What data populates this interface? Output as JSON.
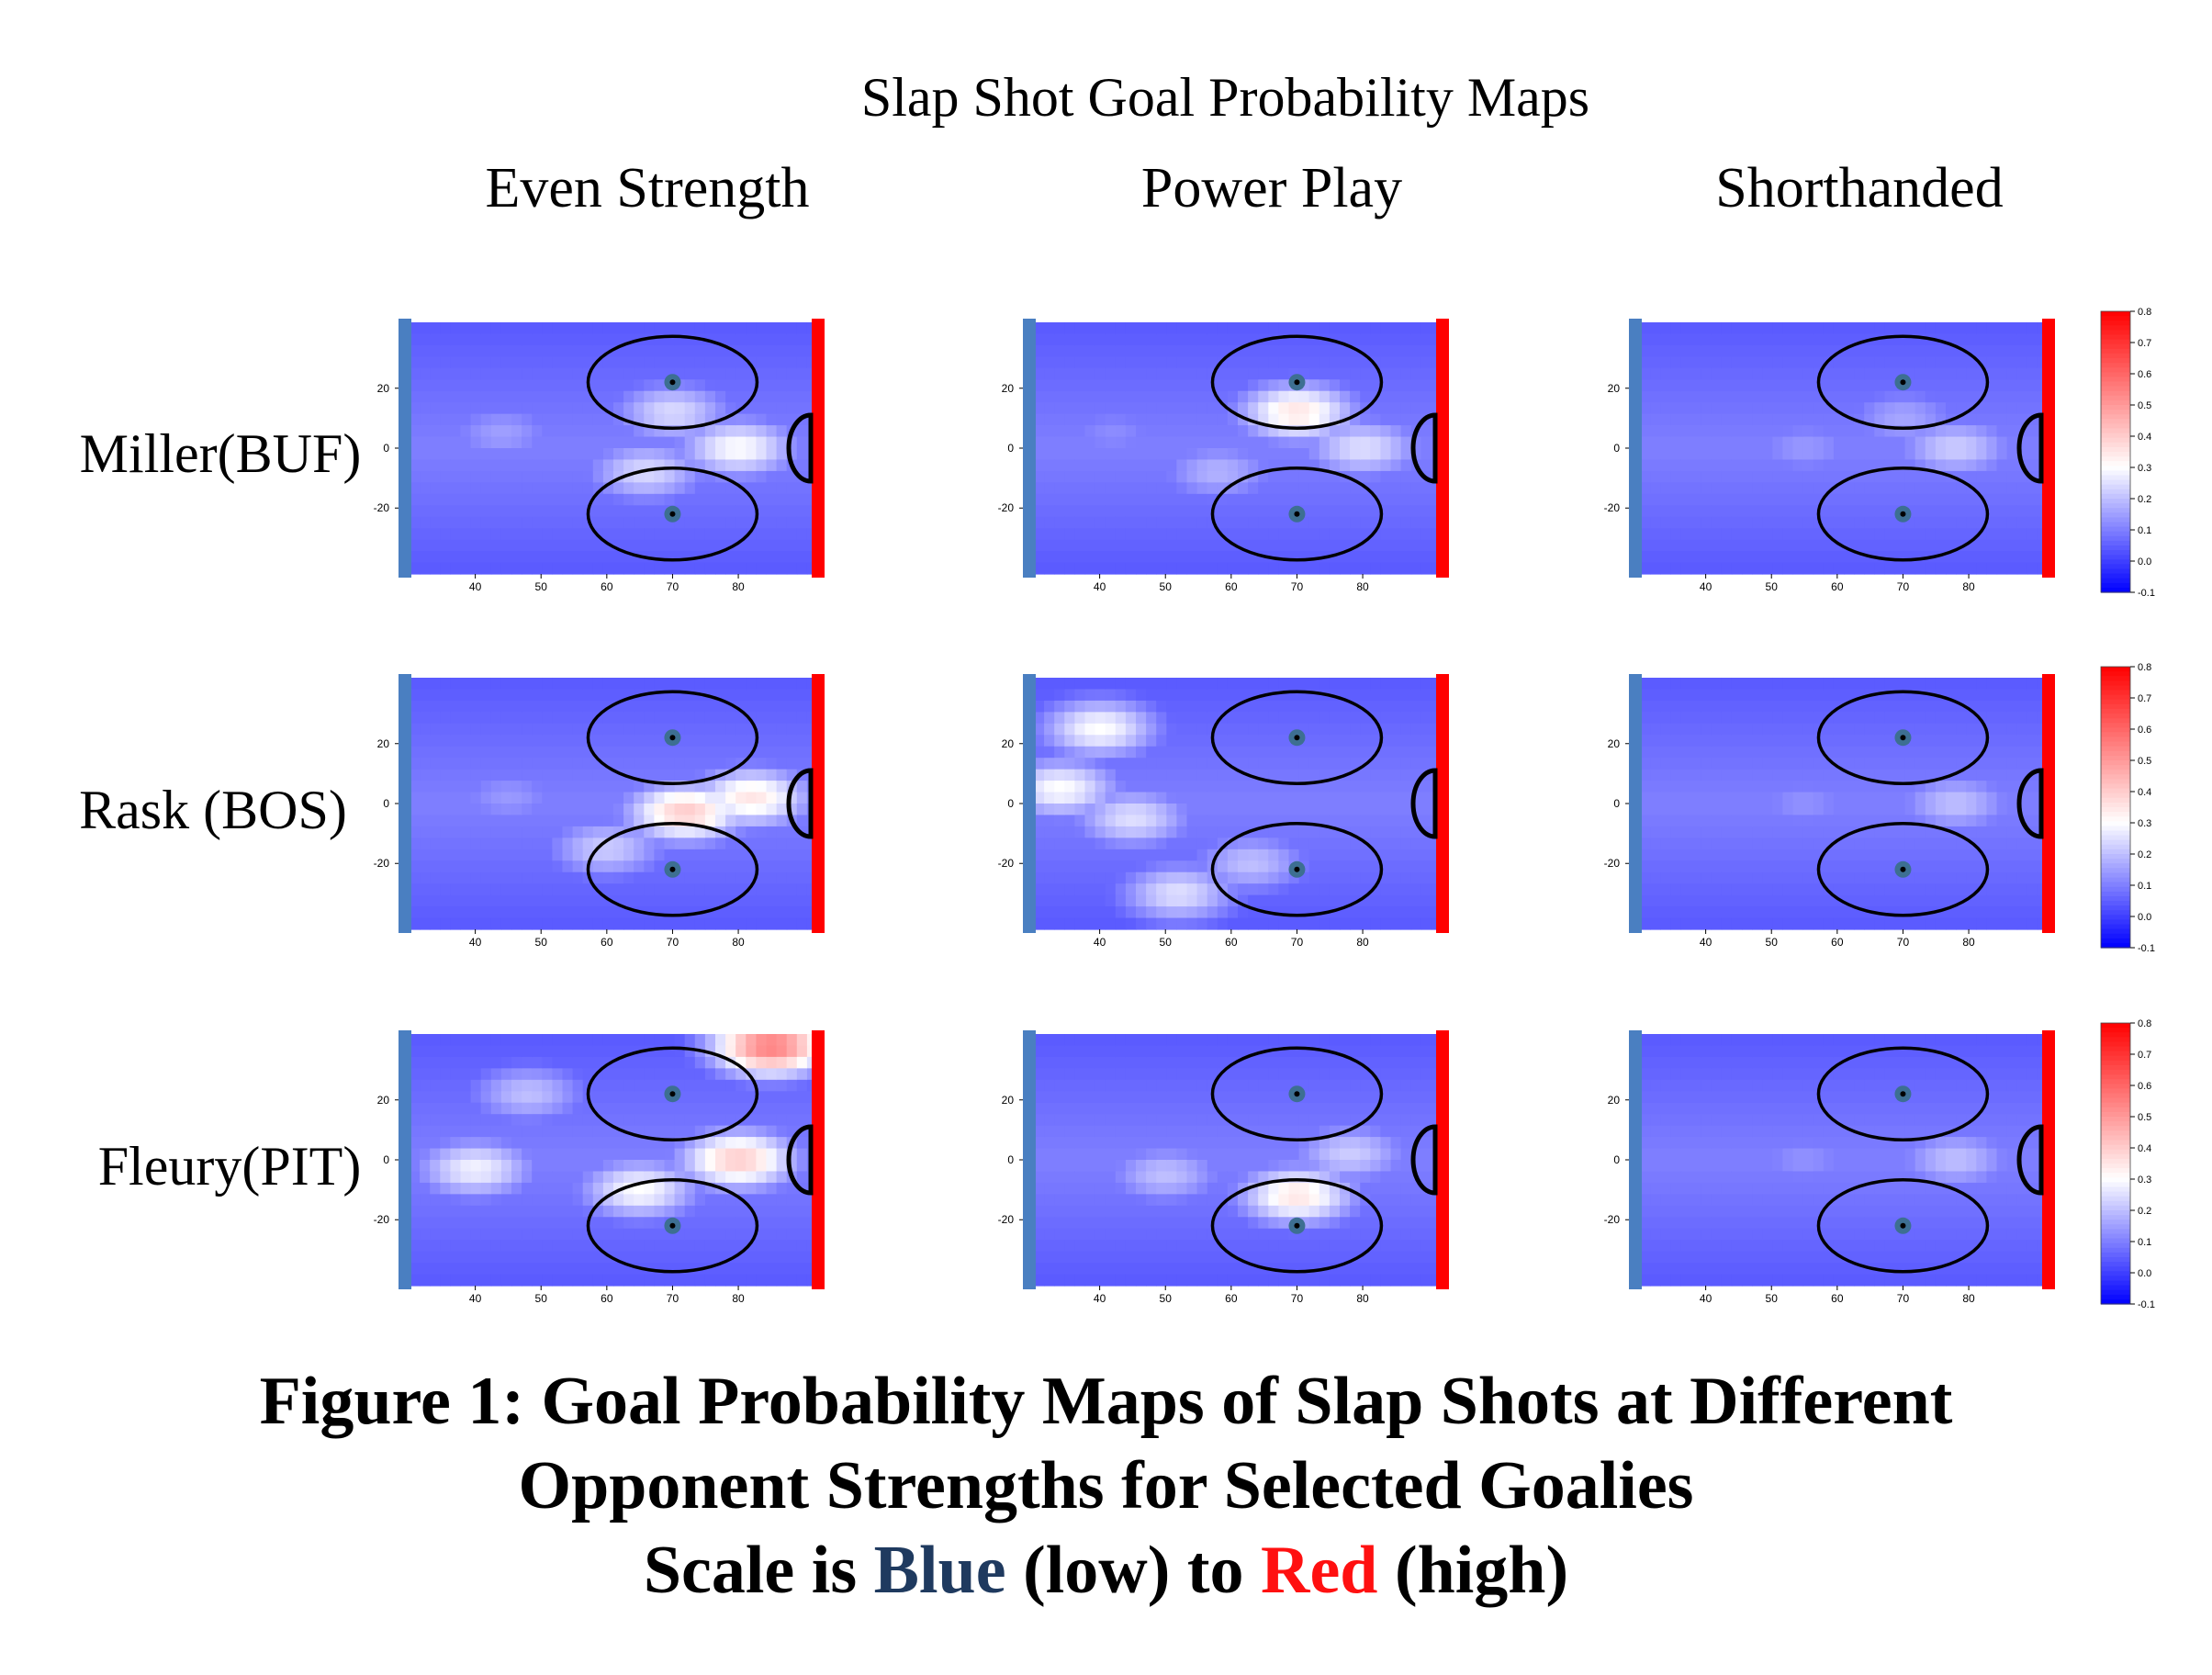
{
  "page_title": "Slap Shot Goal Probability Maps",
  "columns": [
    "Even Strength",
    "Power Play",
    "Shorthanded"
  ],
  "rows": [
    "Miller(BUF)",
    "Rask (BOS)",
    "Fleury(PIT)"
  ],
  "caption": {
    "line1": "Figure 1: Goal Probability Maps of Slap Shots at Different",
    "line2": "Opponent Strengths for Selected Goalies",
    "line3_prefix": "Scale is ",
    "blue_word": "Blue",
    "low_word": " (low) to ",
    "red_word": "Red",
    "high_word": " (high)"
  },
  "colors": {
    "low": "#0000ff",
    "mid": "#ffffff",
    "high": "#ff0000",
    "blue_line": "#4a7fc1",
    "goal_line": "#ff0000"
  },
  "chart_data": {
    "type": "heatmap",
    "x_ticks": [
      40,
      50,
      60,
      70,
      80
    ],
    "y_ticks": [
      20,
      0,
      -20
    ],
    "x_range": [
      30,
      92
    ],
    "y_range": [
      -42,
      42
    ],
    "colorbar": {
      "ticks": [
        0.8,
        0.7,
        0.6,
        0.5,
        0.4,
        0.3,
        0.2,
        0.1,
        0.0,
        -0.1
      ],
      "range": [
        -0.1,
        0.8
      ]
    },
    "faceoff_circles": [
      {
        "x": 70,
        "y": 22
      },
      {
        "x": 70,
        "y": -22
      }
    ],
    "panels": [
      {
        "row": "Miller(BUF)",
        "column": "Even Strength",
        "peak": 0.3,
        "hotspots": [
          {
            "x": 80,
            "y": 0,
            "v": 0.3
          },
          {
            "x": 66,
            "y": -8,
            "v": 0.24
          },
          {
            "x": 70,
            "y": 12,
            "v": 0.24
          },
          {
            "x": 44,
            "y": 5,
            "v": 0.15
          }
        ]
      },
      {
        "row": "Miller(BUF)",
        "column": "Power Play",
        "peak": 0.35,
        "hotspots": [
          {
            "x": 70,
            "y": 12,
            "v": 0.35
          },
          {
            "x": 80,
            "y": 0,
            "v": 0.25
          },
          {
            "x": 58,
            "y": -8,
            "v": 0.18
          },
          {
            "x": 42,
            "y": 5,
            "v": 0.12
          }
        ]
      },
      {
        "row": "Miller(BUF)",
        "column": "Shorthanded",
        "peak": 0.22,
        "hotspots": [
          {
            "x": 78,
            "y": 0,
            "v": 0.22
          },
          {
            "x": 55,
            "y": 0,
            "v": 0.14
          },
          {
            "x": 70,
            "y": 10,
            "v": 0.16
          }
        ]
      },
      {
        "row": "Rask (BOS)",
        "column": "Even Strength",
        "peak": 0.4,
        "hotspots": [
          {
            "x": 72,
            "y": -3,
            "v": 0.4
          },
          {
            "x": 82,
            "y": 2,
            "v": 0.35
          },
          {
            "x": 60,
            "y": -15,
            "v": 0.22
          },
          {
            "x": 45,
            "y": 2,
            "v": 0.14
          }
        ]
      },
      {
        "row": "Rask (BOS)",
        "column": "Power Play",
        "peak": 0.3,
        "hotspots": [
          {
            "x": 34,
            "y": 5,
            "v": 0.3
          },
          {
            "x": 40,
            "y": 25,
            "v": 0.3
          },
          {
            "x": 45,
            "y": -5,
            "v": 0.25
          },
          {
            "x": 52,
            "y": -30,
            "v": 0.25
          },
          {
            "x": 63,
            "y": -20,
            "v": 0.2
          }
        ]
      },
      {
        "row": "Rask (BOS)",
        "column": "Shorthanded",
        "peak": 0.2,
        "hotspots": [
          {
            "x": 78,
            "y": 0,
            "v": 0.2
          },
          {
            "x": 55,
            "y": 0,
            "v": 0.13
          }
        ]
      },
      {
        "row": "Fleury(PIT)",
        "column": "Even Strength",
        "peak": 0.55,
        "hotspots": [
          {
            "x": 85,
            "y": 38,
            "v": 0.55
          },
          {
            "x": 80,
            "y": 0,
            "v": 0.4
          },
          {
            "x": 65,
            "y": -10,
            "v": 0.3
          },
          {
            "x": 40,
            "y": -3,
            "v": 0.28
          },
          {
            "x": 48,
            "y": 22,
            "v": 0.2
          }
        ]
      },
      {
        "row": "Fleury(PIT)",
        "column": "Power Play",
        "peak": 0.35,
        "hotspots": [
          {
            "x": 70,
            "y": -12,
            "v": 0.35
          },
          {
            "x": 78,
            "y": 2,
            "v": 0.22
          },
          {
            "x": 50,
            "y": -5,
            "v": 0.2
          }
        ]
      },
      {
        "row": "Fleury(PIT)",
        "column": "Shorthanded",
        "peak": 0.2,
        "hotspots": [
          {
            "x": 78,
            "y": 0,
            "v": 0.2
          },
          {
            "x": 55,
            "y": 0,
            "v": 0.13
          }
        ]
      }
    ]
  }
}
